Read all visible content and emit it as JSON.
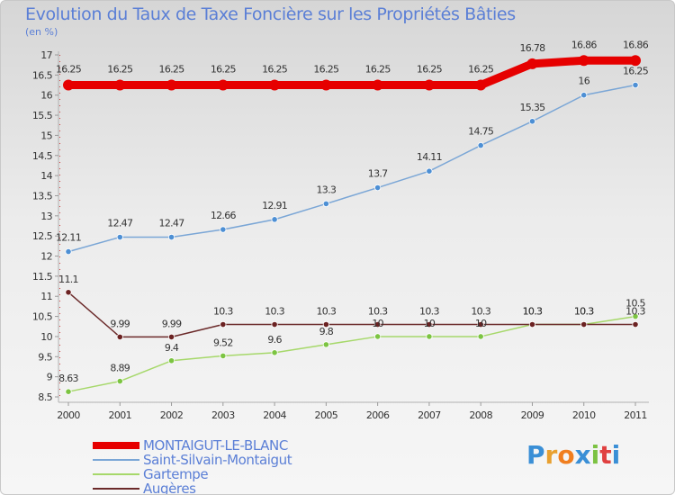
{
  "title": "Evolution du Taux de Taxe Foncière sur les Propriétés Bâties",
  "unit": "(en %)",
  "logo": {
    "text": "Proxiti",
    "colors": [
      "#3a8fd6",
      "#e8a030",
      "#f07e1f",
      "#3a8fd6",
      "#7cc242",
      "#e04040",
      "#3a8fd6"
    ]
  },
  "chart_data": {
    "type": "line",
    "title": "Evolution du Taux de Taxe Foncière sur les Propriétés Bâties",
    "ylabel": "(en %)",
    "xlabel": "",
    "ylim": [
      8.5,
      17
    ],
    "yticks": [
      8.5,
      9,
      9.5,
      10,
      10.5,
      11,
      11.5,
      12,
      12.5,
      13,
      13.5,
      14,
      14.5,
      15,
      15.5,
      16,
      16.5,
      17
    ],
    "grid": false,
    "categories": [
      "2000",
      "2001",
      "2002",
      "2003",
      "2004",
      "2005",
      "2006",
      "2007",
      "2008",
      "2009",
      "2010",
      "2011"
    ],
    "series": [
      {
        "name": "MONTAIGUT-LE-BLANC",
        "color": "#e60000",
        "values": [
          16.25,
          16.25,
          16.25,
          16.25,
          16.25,
          16.25,
          16.25,
          16.25,
          16.25,
          16.78,
          16.86,
          16.86
        ],
        "labels": [
          "16.25",
          "16.25",
          "16.25",
          "16.25",
          "16.25",
          "16.25",
          "16.25",
          "16.25",
          "16.25",
          "16.78",
          "16.86",
          "16.86"
        ]
      },
      {
        "name": "Saint-Silvain-Montaigut",
        "color": "#7aa6d6",
        "marker": "#4d8fd4",
        "values": [
          12.11,
          12.47,
          12.47,
          12.66,
          12.91,
          13.3,
          13.7,
          14.11,
          14.75,
          15.35,
          16,
          16.25
        ],
        "labels": [
          "12.11",
          "12.47",
          "12.47",
          "12.66",
          "12.91",
          "13.3",
          "13.7",
          "14.11",
          "14.75",
          "15.35",
          "16",
          "16.25"
        ]
      },
      {
        "name": "Gartempe",
        "color": "#a6d86a",
        "marker": "#7cc442",
        "values": [
          8.63,
          8.89,
          9.4,
          9.52,
          9.6,
          9.8,
          10,
          10,
          10,
          10.3,
          10.3,
          10.5
        ],
        "labels": [
          "8.63",
          "8.89",
          "9.4",
          "9.52",
          "9.6",
          "9.8",
          "10",
          "10",
          "10",
          "10.3",
          "10.3",
          "10.5"
        ]
      },
      {
        "name": "Augères",
        "color": "#6b2a2a",
        "marker": "#6b2222",
        "values": [
          11.1,
          9.99,
          9.99,
          10.3,
          10.3,
          10.3,
          10.3,
          10.3,
          10.3,
          10.3,
          10.3,
          10.3
        ],
        "labels": [
          "11.1",
          "9.99",
          "9.99",
          "10.3",
          "10.3",
          "10.3",
          "10.3",
          "10.3",
          "10.3",
          "10.3",
          "10.3",
          "10.3"
        ]
      }
    ]
  }
}
